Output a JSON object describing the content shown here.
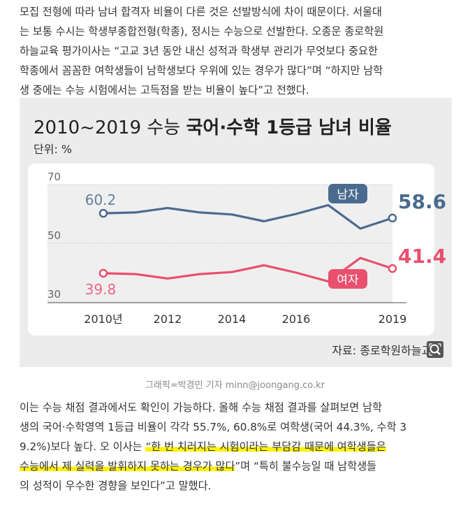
{
  "article": {
    "para1_lines": [
      "모집 전형에 따라 남녀 합격자 비율이 다른 것은 선발방식에 차이 때문이다. 서울대",
      "는 보통 수시는 학생부종합전형(학종), 정시는 수능으로 선발한다. 오종운 종로학원",
      "하늘교육 평가이사는 “고교 3년 동안 내신 성적과 학생부 관리가 무엇보다 중요한",
      "학종에서 꼼꼼한 여학생들이 남학생보다 우위에 있는 경우가 많다”며 “하지만 남학",
      "생 중에는 수능 시험에서는 고득점을 받는 비율이 높다”고 전했다."
    ],
    "para2": {
      "line1": "이는 수능 채점 결과에서도 확인이 가능하다. 올해 수능 채점 결과를 살펴보면 남학",
      "line2": "생의 국어·수학영역 1등급 비율이 각각 55.7%, 60.8%로 여학생(국어 44.3%, 수학 3",
      "line3_plain": "9.2%)보다 높다. 오 이사는 ",
      "line3_highlight": "“한 번 치러지는 시험이라는 부담감 때문에 여학생들은",
      "line4_highlight": "수능에서 제 실력을 발휘하지 못하는 경우가 많다",
      "line4_plain": "”며 “특히 불수능일 때 남학생들",
      "line5": "의 성적이 우수한 경향을 보인다”고 말했다."
    },
    "caption": "그래픽=박경민 기자 minn@joongang.co.kr"
  },
  "figure": {
    "title_plain": "2010~2019 수능 ",
    "title_bold": "국어·수학 1등급 남녀 비율",
    "unit": "단위: %",
    "source": "자료: 종로학원하늘교육",
    "zoom_icon": "magnifier-icon"
  },
  "chart_data": {
    "type": "line",
    "title": "2010~2019 수능 국어·수학 1등급 남녀 비율",
    "unit": "단위: %",
    "x": [
      2010,
      2011,
      2012,
      2013,
      2014,
      2015,
      2016,
      2017,
      2018,
      2019
    ],
    "x_tick_labels": [
      {
        "x": 2010,
        "label": "2010년"
      },
      {
        "x": 2012,
        "label": "2012"
      },
      {
        "x": 2014,
        "label": "2014"
      },
      {
        "x": 2016,
        "label": "2016"
      },
      {
        "x": 2019,
        "label": "2019"
      }
    ],
    "y_ticks": [
      30,
      50,
      70
    ],
    "ylim": [
      30,
      70
    ],
    "series": [
      {
        "name": "남자",
        "color": "#4a6b8f",
        "values": [
          60.2,
          60.5,
          62.0,
          60.5,
          59.8,
          57.5,
          60.0,
          63.0,
          55.0,
          58.6
        ],
        "start_label": "60.2",
        "end_label": "58.6"
      },
      {
        "name": "여자",
        "color": "#e8506e",
        "values": [
          39.8,
          39.5,
          38.0,
          39.5,
          40.2,
          42.5,
          40.0,
          37.0,
          45.0,
          41.4
        ],
        "start_label": "39.8",
        "end_label": "41.4"
      }
    ],
    "source": "자료: 종로학원하늘교육"
  }
}
